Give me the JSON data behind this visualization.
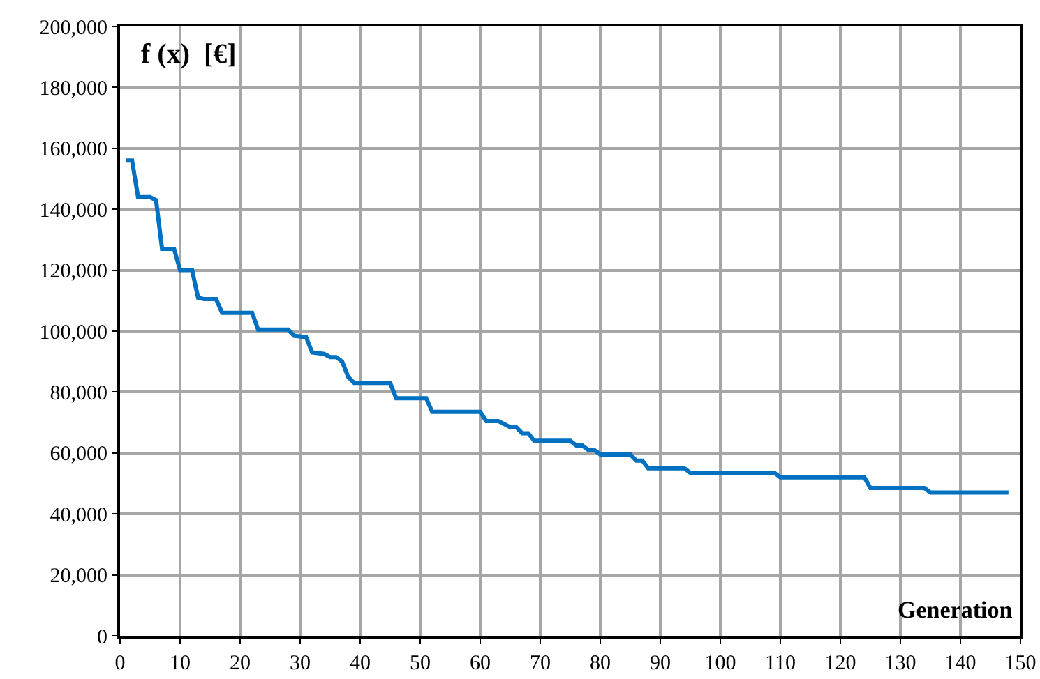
{
  "chart_data": {
    "type": "line",
    "xlabel": "Generation",
    "ylabel": "f (x)  [€]",
    "series": [
      {
        "color": "#0070c0",
        "x": [
          1,
          2,
          3,
          5,
          6,
          7,
          9,
          10,
          12,
          13,
          14,
          16,
          17,
          22,
          23,
          28,
          29,
          31,
          32,
          34,
          35,
          36,
          37,
          38,
          39,
          45,
          46,
          51,
          52,
          60,
          61,
          63,
          65,
          66,
          67,
          68,
          69,
          75,
          76,
          77,
          78,
          79,
          80,
          85,
          86,
          87,
          88,
          94,
          95,
          109,
          110,
          124,
          125,
          134,
          135,
          148
        ],
        "values": [
          156000,
          156000,
          144000,
          144000,
          143000,
          127000,
          127000,
          120000,
          120000,
          111000,
          110500,
          110500,
          106000,
          106000,
          100500,
          100500,
          98500,
          98000,
          93000,
          92500,
          91500,
          91500,
          90000,
          85000,
          83000,
          83000,
          78000,
          78000,
          73500,
          73500,
          70500,
          70500,
          68500,
          68500,
          66500,
          66500,
          64000,
          64000,
          62500,
          62500,
          61000,
          61000,
          59500,
          59500,
          57500,
          57500,
          55000,
          55000,
          53500,
          53500,
          52000,
          52000,
          48500,
          48500,
          47000,
          47000
        ]
      }
    ],
    "xlim": [
      0,
      150
    ],
    "xticks": [
      0,
      10,
      20,
      30,
      40,
      50,
      60,
      70,
      80,
      90,
      100,
      110,
      120,
      130,
      140,
      150
    ],
    "ylim": [
      0,
      200000
    ],
    "yticks": [
      {
        "value": 0,
        "label": "0"
      },
      {
        "value": 20000,
        "label": "20,000"
      },
      {
        "value": 40000,
        "label": "40,000"
      },
      {
        "value": 60000,
        "label": "60,000"
      },
      {
        "value": 80000,
        "label": "80,000"
      },
      {
        "value": 100000,
        "label": "100,000"
      },
      {
        "value": 120000,
        "label": "120,000"
      },
      {
        "value": 140000,
        "label": "140,000"
      },
      {
        "value": 160000,
        "label": "160,000"
      },
      {
        "value": 180000,
        "label": "180,000"
      },
      {
        "value": 200000,
        "label": "200,000"
      }
    ],
    "grid": true,
    "marker": "none",
    "line_style": "solid"
  }
}
